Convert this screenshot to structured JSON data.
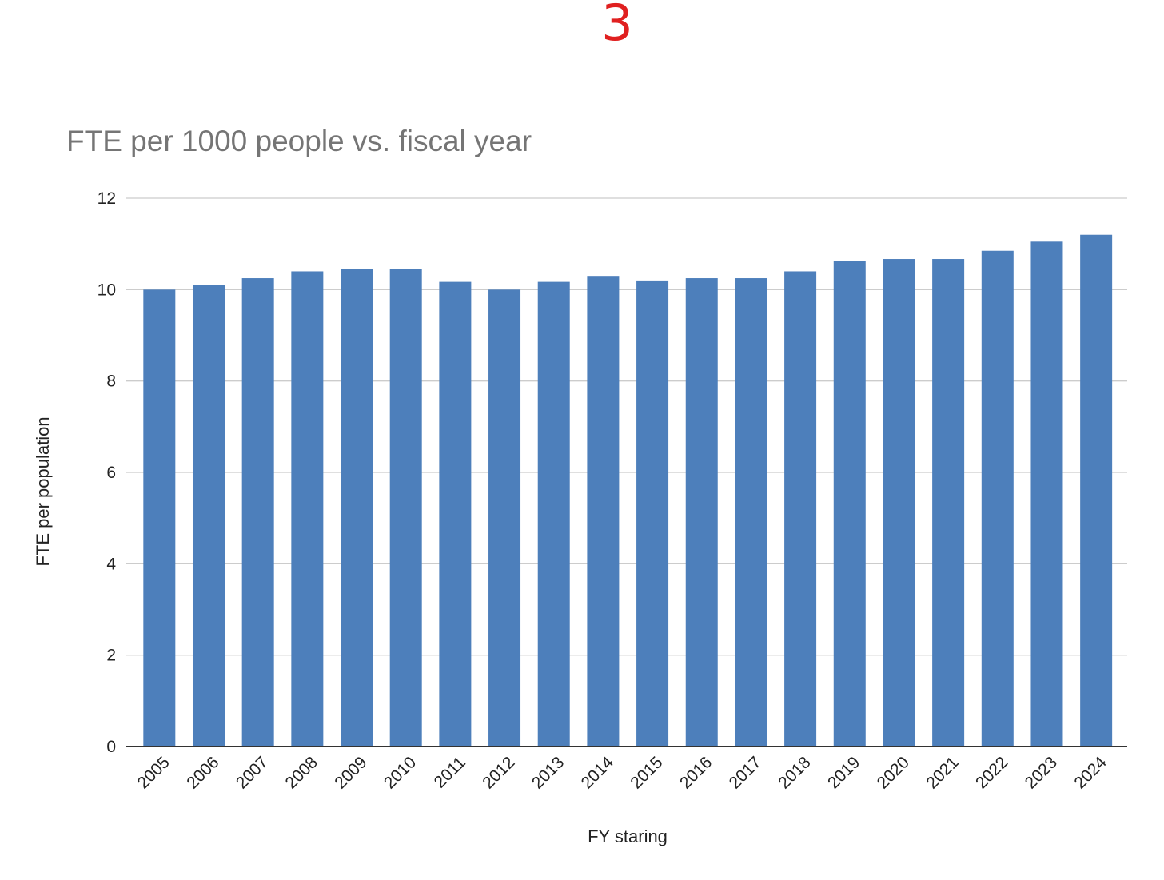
{
  "annotation": {
    "text": "3",
    "color": "#e02020"
  },
  "chart_data": {
    "type": "bar",
    "title": "FTE per 1000 people vs. fiscal year",
    "xlabel": "FY staring",
    "ylabel": "FTE per population",
    "categories": [
      "2005",
      "2006",
      "2007",
      "2008",
      "2009",
      "2010",
      "2011",
      "2012",
      "2013",
      "2014",
      "2015",
      "2016",
      "2017",
      "2018",
      "2019",
      "2020",
      "2021",
      "2022",
      "2023",
      "2024"
    ],
    "series": [
      {
        "values": [
          10.0,
          10.1,
          10.25,
          10.4,
          10.45,
          10.45,
          10.17,
          10.0,
          10.17,
          10.3,
          10.2,
          10.25,
          10.25,
          10.4,
          10.63,
          10.67,
          10.67,
          10.85,
          11.05,
          11.2
        ]
      }
    ],
    "ylim": [
      0,
      12
    ],
    "yticks": [
      "0",
      "2",
      "4",
      "6",
      "8",
      "10",
      "12"
    ],
    "grid": true,
    "legend": "none",
    "bar_color": "#4d7fbb",
    "title_color": "#757575"
  }
}
